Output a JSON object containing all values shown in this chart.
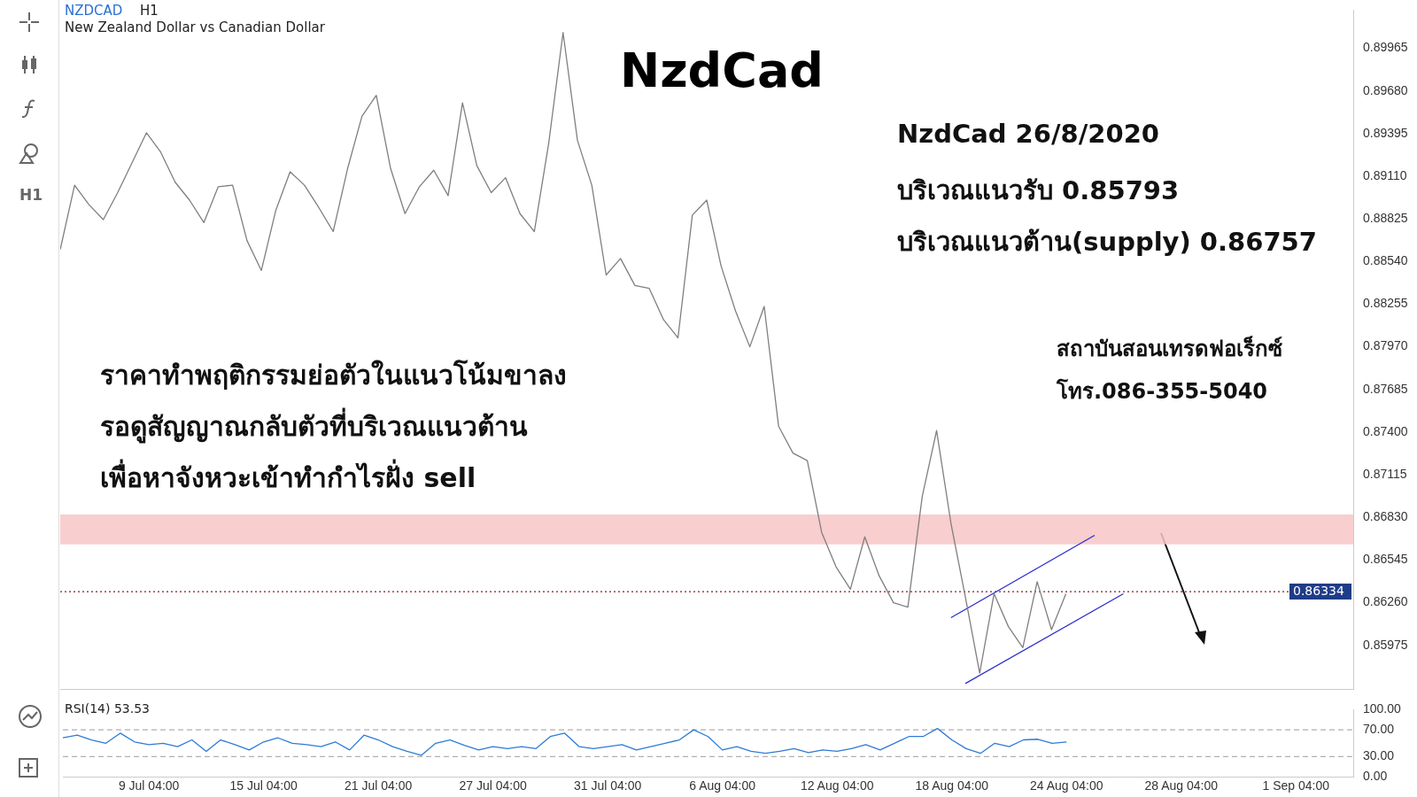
{
  "chart_data": [
    {
      "type": "line",
      "title": "NzdCad",
      "subtitle": "New Zealand Dollar vs Canadian Dollar",
      "annotations": [
        "NZDCAD",
        "H1",
        "NzdCad 26/8/2020",
        "บริเวณแนวรับ 0.85793",
        "บริเวณแนวต้าน(supply) 0.86757",
        "ราคาทำพฤติกรรมย่อตัวในแนวโน้มขาลง",
        "รอดูสัญญาณกลับตัวที่บริเวณแนวต้าน",
        "เพื่อหาจังหวะเข้าทำกำไรฝั่ง sell",
        "สถาบันสอนเทรดฟอเร็กซ์",
        "โทร.086-355-5040",
        "H1"
      ],
      "categories": [
        null,
        null,
        null,
        null,
        null,
        null,
        "9 Jul 04:00",
        null,
        null,
        null,
        null,
        null,
        null,
        null,
        "15 Jul 04:00",
        null,
        null,
        null,
        null,
        null,
        null,
        null,
        "21 Jul 04:00",
        null,
        null,
        null,
        null,
        null,
        null,
        null,
        "27 Jul 04:00",
        null,
        null,
        null,
        null,
        null,
        null,
        null,
        "31 Jul 04:00",
        null,
        null,
        null,
        null,
        null,
        null,
        null,
        "6 Aug 04:00",
        null,
        null,
        null,
        null,
        null,
        null,
        null,
        "12 Aug 04:00",
        null,
        null,
        null,
        null,
        null,
        null,
        null,
        "18 Aug 04:00",
        null,
        null,
        null,
        null,
        null,
        null,
        null,
        "24 Aug 04:00",
        null,
        null,
        null,
        null,
        null,
        null,
        null,
        "28 Aug 04:00",
        null,
        null,
        null,
        null,
        null,
        null,
        null,
        "1 Sep 04:00",
        null,
        null,
        null,
        null
      ],
      "series": [
        {
          "color": "#7f7f7f",
          "values": [
            0.8862,
            0.8905,
            0.8892,
            0.8882,
            0.89,
            0.892,
            0.894,
            0.8927,
            0.8907,
            0.8895,
            0.888,
            0.8904,
            0.8905,
            0.8868,
            0.8848,
            0.8888,
            0.8914,
            0.8905,
            0.889,
            0.8874,
            0.8916,
            0.8951,
            0.8965,
            0.8916,
            0.8886,
            0.8904,
            0.8915,
            0.8898,
            0.896,
            0.8918,
            0.89,
            0.891,
            0.8886,
            0.8874,
            0.8933,
            0.9007,
            0.8935,
            0.8905,
            0.8845,
            0.8856,
            0.8838,
            0.8836,
            0.8815,
            0.8803,
            0.8885,
            0.8895,
            0.8851,
            0.8821,
            0.8797,
            0.8824,
            0.8744,
            0.8726,
            0.8721,
            0.8673,
            0.865,
            0.8635,
            0.867,
            0.8644,
            0.8626,
            0.8623,
            0.8697,
            0.8741,
            0.8679,
            0.863,
            0.8579,
            0.8632,
            0.861,
            0.8596,
            0.864,
            0.8608,
            0.8632,
            null,
            null,
            null,
            null,
            null,
            null,
            null,
            null,
            null,
            null,
            null,
            null,
            null,
            null,
            null,
            null,
            null,
            null,
            null,
            null
          ]
        },
        {
          "color": "#2a2ad0",
          "values": [
            null,
            null,
            null,
            null,
            null,
            null,
            null,
            null,
            null,
            null,
            null,
            null,
            null,
            null,
            null,
            null,
            null,
            null,
            null,
            null,
            null,
            null,
            null,
            null,
            null,
            null,
            null,
            null,
            null,
            null,
            null,
            null,
            null,
            null,
            null,
            null,
            null,
            null,
            null,
            null,
            null,
            null,
            null,
            null,
            null,
            null,
            null,
            null,
            null,
            null,
            null,
            null,
            null,
            null,
            null,
            null,
            null,
            null,
            null,
            null,
            null,
            null,
            null,
            0.8572,
            null,
            null,
            null,
            null,
            null,
            null,
            null,
            null,
            null,
            null,
            0.8632,
            null,
            null,
            null,
            null,
            null,
            null,
            null,
            null,
            null,
            null,
            null,
            null,
            null,
            null,
            null,
            null
          ]
        },
        {
          "color": "#2a2ad0",
          "values": [
            null,
            null,
            null,
            null,
            null,
            null,
            null,
            null,
            null,
            null,
            null,
            null,
            null,
            null,
            null,
            null,
            null,
            null,
            null,
            null,
            null,
            null,
            null,
            null,
            null,
            null,
            null,
            null,
            null,
            null,
            null,
            null,
            null,
            null,
            null,
            null,
            null,
            null,
            null,
            null,
            null,
            null,
            null,
            null,
            null,
            null,
            null,
            null,
            null,
            null,
            null,
            null,
            null,
            null,
            null,
            null,
            null,
            null,
            null,
            null,
            null,
            null,
            0.8616,
            null,
            null,
            null,
            null,
            null,
            null,
            null,
            null,
            null,
            0.8671,
            null,
            null,
            null,
            null,
            null,
            null,
            null,
            null,
            null,
            null,
            null,
            null,
            null,
            null,
            null,
            null,
            null,
            null
          ]
        }
      ],
      "ylim": [
        0.8568,
        0.9022
      ],
      "yticks": [
        {
          "value": 0.85975,
          "label": "0.85975"
        },
        {
          "value": 0.8626,
          "label": "0.86260"
        },
        {
          "value": 0.86545,
          "label": "0.86545"
        },
        {
          "value": 0.8683,
          "label": "0.86830"
        },
        {
          "value": 0.87115,
          "label": "0.87115"
        },
        {
          "value": 0.874,
          "label": "0.87400"
        },
        {
          "value": 0.87685,
          "label": "0.87685"
        },
        {
          "value": 0.8797,
          "label": "0.87970"
        },
        {
          "value": 0.88255,
          "label": "0.88255"
        },
        {
          "value": 0.8854,
          "label": "0.88540"
        },
        {
          "value": 0.88825,
          "label": "0.88825"
        },
        {
          "value": 0.8911,
          "label": "0.89110"
        },
        {
          "value": 0.89395,
          "label": "0.89395"
        },
        {
          "value": 0.8968,
          "label": "0.89680"
        },
        {
          "value": 0.89965,
          "label": "0.89965"
        }
      ],
      "ref_lines": [
        {
          "axis": "y",
          "value": 0.86334,
          "label": "0.86334",
          "color": "#8b1a1a",
          "line_style": "dotted"
        }
      ],
      "bands": [
        {
          "axis": "y",
          "from": 0.8665,
          "to": 0.8685,
          "color": "#f7c6c6"
        }
      ],
      "tick_labels": "y"
    },
    {
      "type": "line",
      "title": "RSI(14) 53.53",
      "series": [
        {
          "color": "#2e7bd6",
          "values": [
            58,
            62,
            55,
            50,
            65,
            52,
            48,
            50,
            45,
            55,
            38,
            55,
            48,
            40,
            52,
            58,
            50,
            48,
            45,
            52,
            40,
            62,
            55,
            45,
            38,
            32,
            50,
            55,
            47,
            40,
            45,
            42,
            45,
            42,
            60,
            65,
            45,
            42,
            45,
            48,
            40,
            45,
            50,
            55,
            70,
            60,
            40,
            45,
            38,
            35,
            38,
            42,
            36,
            40,
            38,
            42,
            48,
            40,
            50,
            60,
            60,
            72,
            55,
            42,
            35,
            50,
            45,
            55,
            56,
            50,
            52,
            null,
            null,
            null,
            null,
            null,
            null,
            null,
            null,
            null,
            null,
            null,
            null,
            null,
            null,
            null,
            null,
            null,
            null,
            null,
            null
          ]
        }
      ],
      "ylim": [
        0,
        100
      ],
      "yticks": [
        {
          "value": 0,
          "label": "0.00"
        },
        {
          "value": 30,
          "label": "30.00"
        },
        {
          "value": 70,
          "label": "70.00"
        },
        {
          "value": 100,
          "label": "100.00"
        }
      ],
      "ref_lines": [
        {
          "axis": "y",
          "value": 30,
          "color": "#b0b0b0",
          "line_style": "dashed"
        },
        {
          "axis": "y",
          "value": 70,
          "color": "#b0b0b0",
          "line_style": "dashed"
        }
      ]
    }
  ]
}
